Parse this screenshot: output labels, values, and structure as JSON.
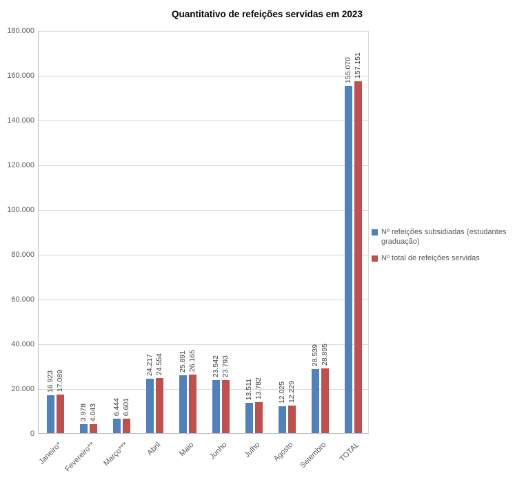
{
  "chart_data": {
    "type": "bar",
    "title": "Quantitativo de refeições servidas em 2023",
    "categories": [
      "Janeiro*",
      "Fevereiro**",
      "Março***",
      "Abril",
      "Maio",
      "Junho",
      "Julho",
      "Agosto",
      "Setembro",
      "TOTAL"
    ],
    "series": [
      {
        "name": "Nº refeições subsidiadas (estudantes graduação)",
        "color": "#4F81BD",
        "values": [
          16923,
          3978,
          6444,
          24217,
          25891,
          23542,
          13511,
          12025,
          28539,
          155070
        ],
        "labels": [
          "16.923",
          "3.978",
          "6.444",
          "24.217",
          "25.891",
          "23.542",
          "13.511",
          "12.025",
          "28.539",
          "155.070"
        ]
      },
      {
        "name": "Nº total de refeições servidas",
        "color": "#C0504D",
        "values": [
          17089,
          4043,
          6601,
          24554,
          26165,
          23793,
          13782,
          12229,
          28895,
          157151
        ],
        "labels": [
          "17.089",
          "4.043",
          "6.601",
          "24.554",
          "26.165",
          "23.793",
          "13.782",
          "12.229",
          "28.895",
          "157.151"
        ]
      }
    ],
    "ylim": [
      0,
      180000
    ],
    "ytick_interval": 20000,
    "ytick_labels": [
      "0",
      "20.000",
      "40.000",
      "60.000",
      "80.000",
      "100.000",
      "120.000",
      "140.000",
      "160.000",
      "180.000"
    ],
    "grid": true,
    "legend_position": "right"
  }
}
